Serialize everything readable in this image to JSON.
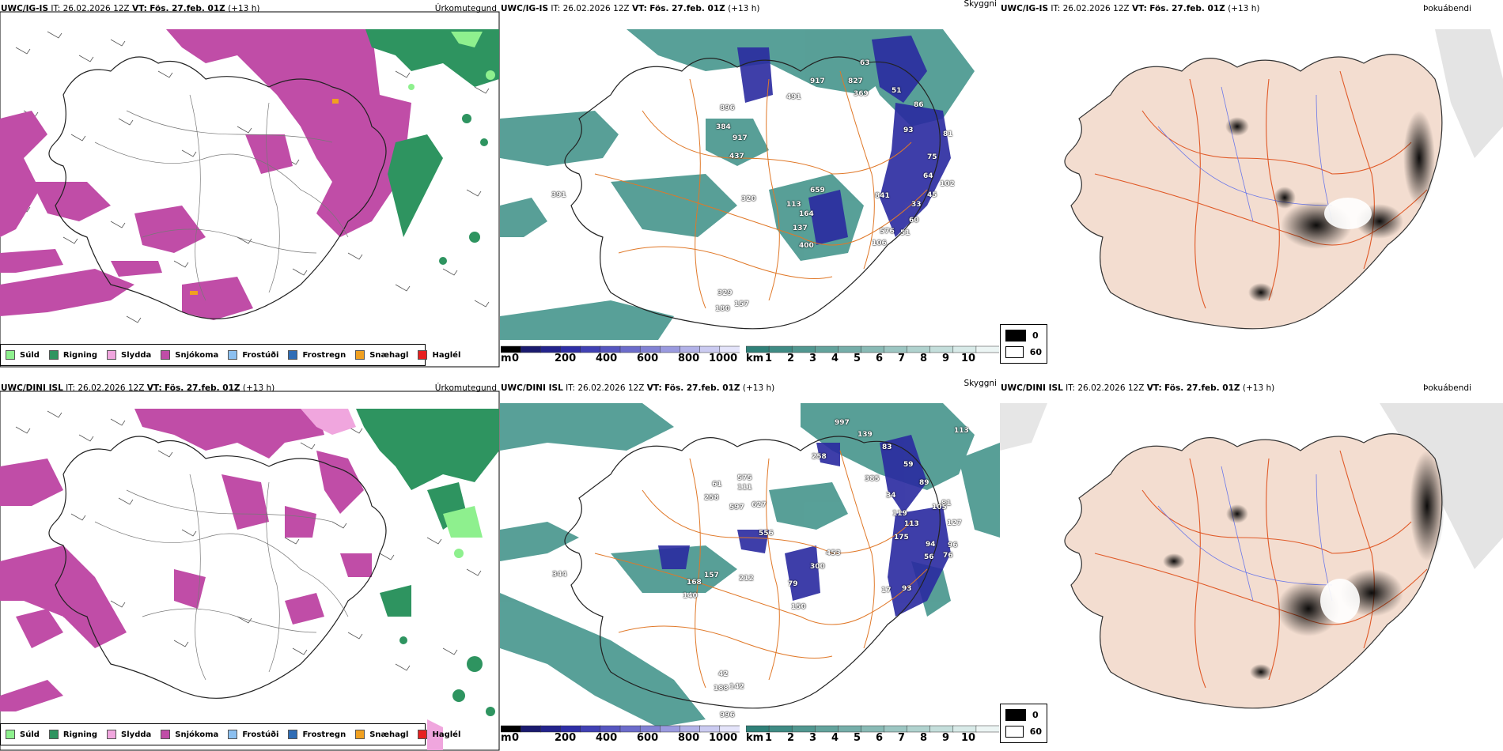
{
  "colors": {
    "sudd": "#8ef08e",
    "rigning": "#2e9460",
    "slydda": "#f0a6de",
    "snjokoma": "#c04da7",
    "frostudi": "#8cc0f0",
    "frostregn": "#2f6db6",
    "snaehagl": "#f0a020",
    "haglel": "#e82020",
    "cloud_teal": "#3b8f86",
    "cloud_blue": "#2a2aa0",
    "road": "#e07828",
    "land_beige": "#f3ddd0",
    "river": "#6b78e8"
  },
  "rows": [
    {
      "model": "UWC/IG-IS",
      "it_label": "IT:",
      "it_value": "26.02.2026 12Z",
      "vt_label": "VT:",
      "vt_value": "Fös. 27.feb. 01Z",
      "offset": "(+13 h)"
    },
    {
      "model": "UWC/DINI ISL",
      "it_label": "IT:",
      "it_value": "26.02.2026 12Z",
      "vt_label": "VT:",
      "vt_value": "Fös. 27.feb. 01Z",
      "offset": "(+13 h)"
    }
  ],
  "panel_titles": {
    "precip": "Úrkomutegund",
    "cloud": "Skyggni",
    "fog": "Þokuábendi"
  },
  "precip_legend": [
    {
      "label": "Súld",
      "color": "#8ef08e"
    },
    {
      "label": "Rigning",
      "color": "#2e9460"
    },
    {
      "label": "Slydda",
      "color": "#f0a6de"
    },
    {
      "label": "Snjókoma",
      "color": "#c04da7"
    },
    {
      "label": "Frostúði",
      "color": "#8cc0f0"
    },
    {
      "label": "Frostregn",
      "color": "#2f6db6"
    },
    {
      "label": "Snæhagl",
      "color": "#f0a020"
    },
    {
      "label": "Haglél",
      "color": "#e82020"
    }
  ],
  "cloud_base_scale": {
    "unit": "m",
    "ticks": [
      "0",
      "200",
      "400",
      "600",
      "800",
      "1000"
    ],
    "colors": [
      "#000000",
      "#1a1a6e",
      "#23238c",
      "#2e2ea6",
      "#4141b4",
      "#5656c0",
      "#6c6ccb",
      "#8282d4",
      "#9a9adf",
      "#b2b2e8",
      "#cbcbf1",
      "#e4e4fa"
    ]
  },
  "visibility_scale": {
    "unit": "km",
    "ticks": [
      "1",
      "2",
      "3",
      "4",
      "5",
      "6",
      "7",
      "8",
      "9",
      "10"
    ],
    "colors": [
      "#2f8078",
      "#3f8b84",
      "#519790",
      "#63a39c",
      "#76aea9",
      "#89bab5",
      "#9cc6c2",
      "#b0d2ce",
      "#c4dedb",
      "#d8eae8",
      "#ecf5f4"
    ]
  },
  "fog_legend": [
    {
      "label": "0",
      "color": "#000000"
    },
    {
      "label": "60",
      "color": "#ffffff"
    }
  ],
  "cloud_features_top": [
    "63",
    "51",
    "827",
    "369",
    "896",
    "491",
    "917",
    "384",
    "917",
    "437",
    "93",
    "86",
    "81",
    "75",
    "64",
    "102",
    "45",
    "33",
    "391",
    "320",
    "113",
    "659",
    "841",
    "164",
    "137",
    "60",
    "51",
    "576",
    "106",
    "400",
    "329",
    "180",
    "157"
  ],
  "cloud_features_bottom": [
    "997",
    "139",
    "113",
    "83",
    "258",
    "385",
    "59",
    "575",
    "61",
    "111",
    "258",
    "597",
    "627",
    "556",
    "89",
    "81",
    "34",
    "119",
    "105",
    "127",
    "113",
    "175",
    "94",
    "96",
    "56",
    "76",
    "453",
    "300",
    "344",
    "157",
    "212",
    "168",
    "140",
    "79",
    "17",
    "150",
    "93",
    "42",
    "188",
    "142",
    "996"
  ]
}
